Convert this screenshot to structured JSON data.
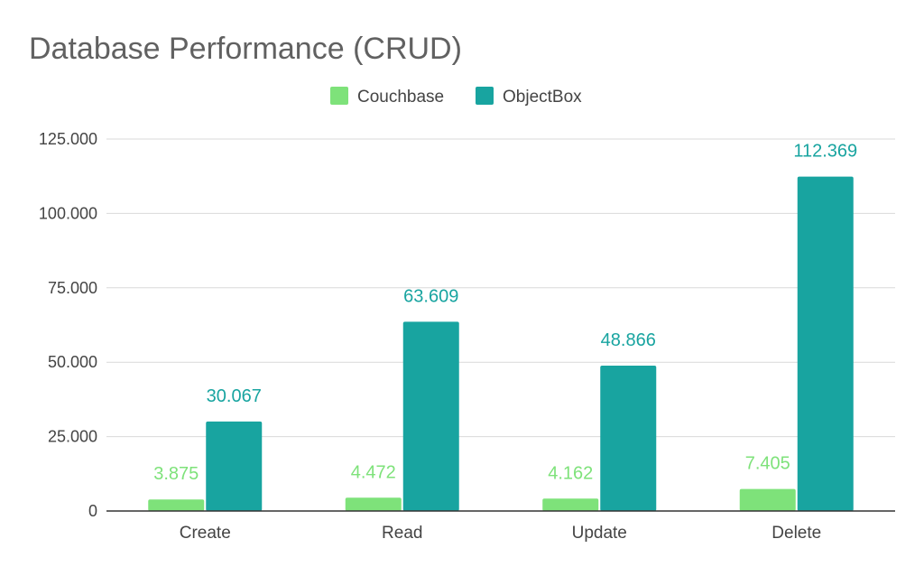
{
  "chart_data": {
    "type": "bar",
    "title": "Database Performance (CRUD)",
    "xlabel": "",
    "ylabel": "",
    "categories": [
      "Create",
      "Read",
      "Update",
      "Delete"
    ],
    "series": [
      {
        "name": "Couchbase",
        "color": "#7ee27a",
        "values": [
          3875,
          4472,
          4162,
          7405
        ],
        "labels": [
          "3.875",
          "4.472",
          "4.162",
          "7.405"
        ]
      },
      {
        "name": "ObjectBox",
        "color": "#18a4a0",
        "values": [
          30067,
          63609,
          48866,
          112369
        ],
        "labels": [
          "30.067",
          "63.609",
          "48.866",
          "112.369"
        ]
      }
    ],
    "ylim": [
      0,
      125000
    ],
    "yticks": [
      0,
      25000,
      50000,
      75000,
      100000,
      125000
    ],
    "ytick_labels": [
      "0",
      "25.000",
      "50.000",
      "75.000",
      "100.000",
      "125.000"
    ],
    "grid": true,
    "legend": "top-center"
  },
  "colors": {
    "title": "#616161",
    "axis_text": "#444444",
    "grid": "#d9d9d9",
    "axis_line": "#333333"
  }
}
